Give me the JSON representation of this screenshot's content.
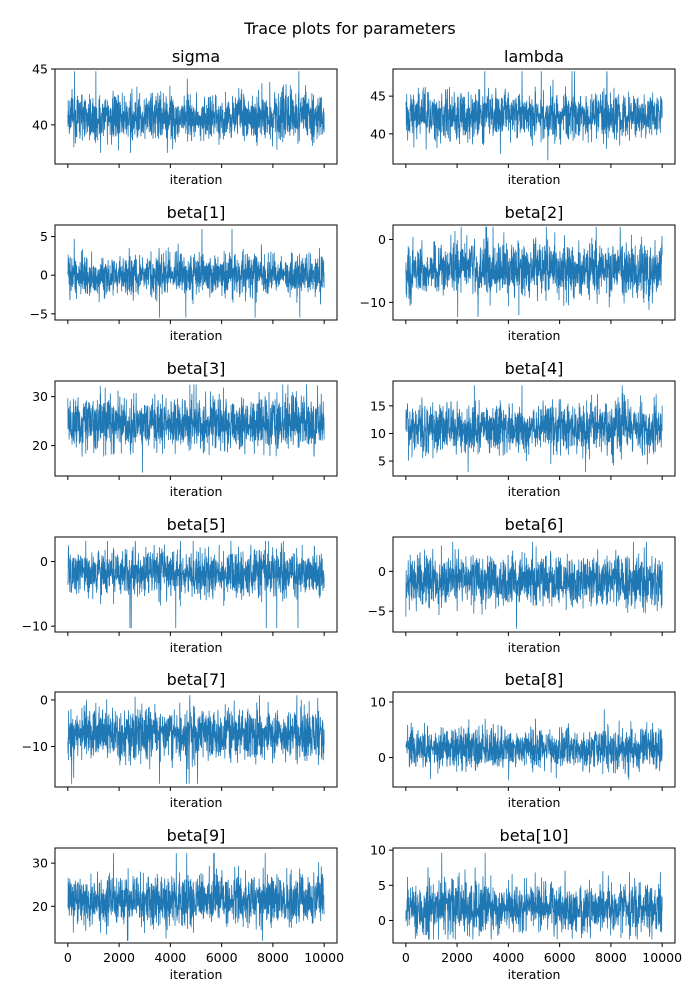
{
  "figure": {
    "suptitle": "Trace plots for parameters",
    "line_color": "#1f77b4"
  },
  "chart_data": [
    {
      "type": "line",
      "title": "sigma",
      "xlabel": "iteration",
      "ylabel": "",
      "xlim": [
        -500,
        10500
      ],
      "ylim": [
        36.5,
        45.0
      ],
      "yticks": [
        40,
        45
      ],
      "xticks": [
        0,
        2000,
        4000,
        6000,
        8000,
        10000
      ],
      "x_tick_labels_visible": false,
      "samples": 10000,
      "mean": 40.7,
      "sd": 1.1,
      "ci_range": [
        37.5,
        44.8
      ]
    },
    {
      "type": "line",
      "title": "lambda",
      "xlabel": "iteration",
      "ylabel": "",
      "xlim": [
        -500,
        10500
      ],
      "ylim": [
        36.0,
        48.6
      ],
      "yticks": [
        40,
        45
      ],
      "xticks": [
        0,
        2000,
        4000,
        6000,
        8000,
        10000
      ],
      "x_tick_labels_visible": false,
      "samples": 10000,
      "mean": 42.5,
      "sd": 1.6,
      "ci_range": [
        36.5,
        48.3
      ]
    },
    {
      "type": "line",
      "title": "beta[1]",
      "xlabel": "iteration",
      "ylabel": "",
      "xlim": [
        -500,
        10500
      ],
      "ylim": [
        -5.8,
        6.5
      ],
      "yticks": [
        -5,
        0,
        5
      ],
      "xticks": [
        0,
        2000,
        4000,
        6000,
        8000,
        10000
      ],
      "x_tick_labels_visible": false,
      "samples": 10000,
      "mean": 0.0,
      "sd": 1.3,
      "ci_range": [
        -5.5,
        6.0
      ]
    },
    {
      "type": "line",
      "title": "beta[2]",
      "xlabel": "iteration",
      "ylabel": "",
      "xlim": [
        -500,
        10500
      ],
      "ylim": [
        -12.8,
        2.3
      ],
      "yticks": [
        -10,
        0
      ],
      "xticks": [
        0,
        2000,
        4000,
        6000,
        8000,
        10000
      ],
      "x_tick_labels_visible": false,
      "samples": 10000,
      "mean": -4.8,
      "sd": 2.1,
      "ci_range": [
        -12.3,
        2.0
      ]
    },
    {
      "type": "line",
      "title": "beta[3]",
      "xlabel": "iteration",
      "ylabel": "",
      "xlim": [
        -500,
        10500
      ],
      "ylim": [
        13.8,
        33.2
      ],
      "yticks": [
        20,
        30
      ],
      "xticks": [
        0,
        2000,
        4000,
        6000,
        8000,
        10000
      ],
      "x_tick_labels_visible": false,
      "samples": 10000,
      "mean": 24.5,
      "sd": 2.7,
      "ci_range": [
        14.5,
        32.5
      ]
    },
    {
      "type": "line",
      "title": "beta[4]",
      "xlabel": "iteration",
      "ylabel": "",
      "xlim": [
        -500,
        10500
      ],
      "ylim": [
        2.3,
        19.5
      ],
      "yticks": [
        5,
        10,
        15
      ],
      "xticks": [
        0,
        2000,
        4000,
        6000,
        8000,
        10000
      ],
      "x_tick_labels_visible": false,
      "samples": 10000,
      "mean": 11.0,
      "sd": 2.3,
      "ci_range": [
        3.0,
        18.7
      ]
    },
    {
      "type": "line",
      "title": "beta[5]",
      "xlabel": "iteration",
      "ylabel": "",
      "xlim": [
        -500,
        10500
      ],
      "ylim": [
        -10.9,
        3.8
      ],
      "yticks": [
        -10,
        0
      ],
      "xticks": [
        0,
        2000,
        4000,
        6000,
        8000,
        10000
      ],
      "x_tick_labels_visible": false,
      "samples": 10000,
      "mean": -1.9,
      "sd": 1.8,
      "ci_range": [
        -10.3,
        3.2
      ]
    },
    {
      "type": "line",
      "title": "beta[6]",
      "xlabel": "iteration",
      "ylabel": "",
      "xlim": [
        -500,
        10500
      ],
      "ylim": [
        -7.6,
        4.3
      ],
      "yticks": [
        -5,
        0
      ],
      "xticks": [
        0,
        2000,
        4000,
        6000,
        8000,
        10000
      ],
      "x_tick_labels_visible": false,
      "samples": 10000,
      "mean": -1.2,
      "sd": 1.6,
      "ci_range": [
        -7.2,
        3.7
      ]
    },
    {
      "type": "line",
      "title": "beta[7]",
      "xlabel": "iteration",
      "ylabel": "",
      "xlim": [
        -500,
        10500
      ],
      "ylim": [
        -18.7,
        1.7
      ],
      "yticks": [
        -10,
        0
      ],
      "xticks": [
        0,
        2000,
        4000,
        6000,
        8000,
        10000
      ],
      "x_tick_labels_visible": false,
      "samples": 10000,
      "mean": -7.3,
      "sd": 2.8,
      "ci_range": [
        -18.0,
        1.0
      ]
    },
    {
      "type": "line",
      "title": "beta[8]",
      "xlabel": "iteration",
      "ylabel": "",
      "xlim": [
        -500,
        10500
      ],
      "ylim": [
        -5.3,
        11.8
      ],
      "yticks": [
        0,
        10
      ],
      "xticks": [
        0,
        2000,
        4000,
        6000,
        8000,
        10000
      ],
      "x_tick_labels_visible": false,
      "samples": 10000,
      "mean": 1.6,
      "sd": 1.9,
      "ci_range": [
        -4.5,
        11.0
      ]
    },
    {
      "type": "line",
      "title": "beta[9]",
      "xlabel": "iteration",
      "ylabel": "",
      "xlim": [
        -500,
        10500
      ],
      "ylim": [
        11.5,
        33.5
      ],
      "yticks": [
        20,
        30
      ],
      "xticks": [
        0,
        2000,
        4000,
        6000,
        8000,
        10000
      ],
      "x_tick_labels_visible": true,
      "samples": 10000,
      "mean": 21.5,
      "sd": 2.8,
      "ci_range": [
        12.0,
        32.3
      ]
    },
    {
      "type": "line",
      "title": "beta[10]",
      "xlabel": "iteration",
      "ylabel": "",
      "xlim": [
        -500,
        10500
      ],
      "ylim": [
        -3.2,
        10.3
      ],
      "yticks": [
        0,
        5,
        10
      ],
      "xticks": [
        0,
        2000,
        4000,
        6000,
        8000,
        10000
      ],
      "x_tick_labels_visible": true,
      "samples": 10000,
      "mean": 1.8,
      "sd": 1.8,
      "ci_range": [
        -2.7,
        9.6
      ]
    }
  ]
}
